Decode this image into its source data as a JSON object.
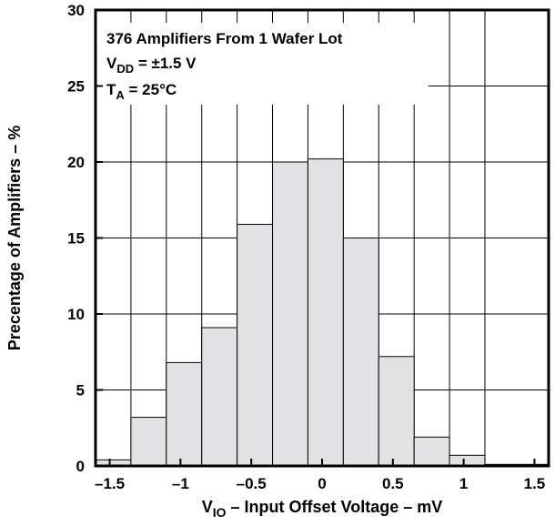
{
  "chart_data": {
    "type": "bar",
    "title": "",
    "annotations": {
      "line1": "376 Amplifiers From 1 Wafer Lot",
      "line2_main": "V",
      "line2_sub": "DD",
      "line2_rest": " = ±1.5 V",
      "line3_main": "T",
      "line3_sub": "A",
      "line3_rest": " = 25°C"
    },
    "xlabel_main": "V",
    "xlabel_sub": "IO",
    "xlabel_rest": " – Input Offset Voltage – mV",
    "ylabel": "Precentage of Amplifiers – %",
    "xlim": [
      -1.6,
      1.6
    ],
    "ylim": [
      0,
      30
    ],
    "x_ticks": [
      -1.5,
      -1,
      -0.5,
      0,
      0.5,
      1,
      1.5
    ],
    "x_tick_labels": [
      "–1.5",
      "–1",
      "–0.5",
      "0",
      "0.5",
      "1",
      "1.5"
    ],
    "y_ticks": [
      0,
      5,
      10,
      15,
      20,
      25,
      30
    ],
    "y_tick_labels": [
      "0",
      "5",
      "10",
      "15",
      "20",
      "25",
      "30"
    ],
    "grid": true,
    "bin_width": 0.25,
    "bins": [
      {
        "from": -1.6,
        "to": -1.35,
        "value": 0.4
      },
      {
        "from": -1.35,
        "to": -1.1,
        "value": 3.2
      },
      {
        "from": -1.1,
        "to": -0.85,
        "value": 6.8
      },
      {
        "from": -0.85,
        "to": -0.6,
        "value": 9.1
      },
      {
        "from": -0.6,
        "to": -0.35,
        "value": 15.9
      },
      {
        "from": -0.35,
        "to": -0.1,
        "value": 20.0
      },
      {
        "from": -0.1,
        "to": 0.15,
        "value": 20.2
      },
      {
        "from": 0.15,
        "to": 0.4,
        "value": 15.0
      },
      {
        "from": 0.4,
        "to": 0.65,
        "value": 7.2
      },
      {
        "from": 0.65,
        "to": 0.9,
        "value": 1.9
      },
      {
        "from": 0.9,
        "to": 1.15,
        "value": 0.7
      },
      {
        "from": 1.15,
        "to": 1.6,
        "value": 0.1
      }
    ],
    "bar_color": "#e2e2e4"
  }
}
